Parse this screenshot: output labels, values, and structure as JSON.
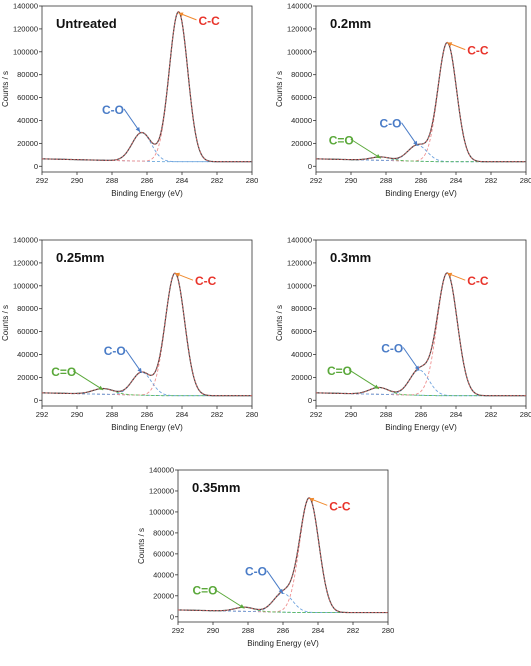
{
  "colors": {
    "cc": "#e8332a",
    "co": "#4a7cc7",
    "ceo": "#5aa83a",
    "arrow_cc": "#f08a2e",
    "envelope": "#444444",
    "fit": "#e06a6a",
    "component_cc": "#ef8f8f",
    "component_co": "#6fa3de",
    "component_ceo": "#5dbb5d",
    "baseline": "#6aa8dc"
  },
  "chart_data": [
    {
      "type": "line",
      "panel_label": "Untreated",
      "xlabel": "Binding Energy (eV)",
      "ylabel": "Counts / s",
      "xlim": [
        292,
        280
      ],
      "ylim": [
        -5000,
        140000
      ],
      "x_ticks": [
        "292",
        "290",
        "288",
        "286",
        "284",
        "282",
        "280"
      ],
      "y_ticks": [
        "0",
        "20000",
        "40000",
        "60000",
        "80000",
        "100000",
        "120000",
        "140000"
      ],
      "grid": false,
      "baseline": 4000,
      "peaks": [
        {
          "name": "C-C",
          "center": 284.2,
          "height": 131000,
          "fwhm": 1.25
        },
        {
          "name": "C-O",
          "center": 286.3,
          "height": 25000,
          "fwhm": 1.3
        }
      ],
      "annotations": [
        {
          "text": "C-C",
          "x": 284.2,
          "y": 134000
        },
        {
          "text": "C-O",
          "x": 286.4,
          "y": 30000
        }
      ]
    },
    {
      "type": "line",
      "panel_label": "0.2mm",
      "xlabel": "Binding Energy (eV)",
      "ylabel": "Counts / s",
      "xlim": [
        292,
        280
      ],
      "ylim": [
        -5000,
        140000
      ],
      "x_ticks": [
        "292",
        "290",
        "288",
        "286",
        "284",
        "282",
        "280"
      ],
      "y_ticks": [
        "0",
        "20000",
        "40000",
        "60000",
        "80000",
        "100000",
        "120000",
        "140000"
      ],
      "grid": false,
      "baseline": 4000,
      "peaks": [
        {
          "name": "C-C",
          "center": 284.5,
          "height": 104000,
          "fwhm": 1.25
        },
        {
          "name": "C-O",
          "center": 286.2,
          "height": 14000,
          "fwhm": 1.3
        },
        {
          "name": "C=O",
          "center": 288.3,
          "height": 3000,
          "fwhm": 1.3
        }
      ],
      "annotations": [
        {
          "text": "C-C",
          "x": 284.5,
          "y": 108000
        },
        {
          "text": "C-O",
          "x": 286.2,
          "y": 18000
        },
        {
          "text": "C=O",
          "x": 288.3,
          "y": 7000
        }
      ]
    },
    {
      "type": "line",
      "panel_label": "0.25mm",
      "xlabel": "Binding Energy (eV)",
      "ylabel": "Counts / s",
      "xlim": [
        292,
        280
      ],
      "ylim": [
        -5000,
        140000
      ],
      "x_ticks": [
        "292",
        "290",
        "288",
        "286",
        "284",
        "282",
        "280"
      ],
      "y_ticks": [
        "0",
        "20000",
        "40000",
        "60000",
        "80000",
        "100000",
        "120000",
        "140000"
      ],
      "grid": false,
      "baseline": 4000,
      "peaks": [
        {
          "name": "C-C",
          "center": 284.4,
          "height": 107000,
          "fwhm": 1.3
        },
        {
          "name": "C-O",
          "center": 286.3,
          "height": 20000,
          "fwhm": 1.3
        },
        {
          "name": "C=O",
          "center": 288.5,
          "height": 5000,
          "fwhm": 1.4
        }
      ],
      "annotations": [
        {
          "text": "C-C",
          "x": 284.4,
          "y": 111000
        },
        {
          "text": "C-O",
          "x": 286.3,
          "y": 24000
        },
        {
          "text": "C=O",
          "x": 288.5,
          "y": 9000
        }
      ]
    },
    {
      "type": "line",
      "panel_label": "0.3mm",
      "xlabel": "Binding Energy (eV)",
      "ylabel": "Counts / s",
      "xlim": [
        292,
        280
      ],
      "ylim": [
        -5000,
        140000
      ],
      "x_ticks": [
        "292",
        "290",
        "288",
        "286",
        "284",
        "282",
        "280"
      ],
      "y_ticks": [
        "0",
        "20000",
        "40000",
        "60000",
        "80000",
        "100000",
        "120000",
        "140000"
      ],
      "grid": false,
      "baseline": 4000,
      "peaks": [
        {
          "name": "C-C",
          "center": 284.5,
          "height": 107000,
          "fwhm": 1.35
        },
        {
          "name": "C-O",
          "center": 286.1,
          "height": 22000,
          "fwhm": 1.3
        },
        {
          "name": "C=O",
          "center": 288.4,
          "height": 6000,
          "fwhm": 1.3
        }
      ],
      "annotations": [
        {
          "text": "C-C",
          "x": 284.5,
          "y": 111000
        },
        {
          "text": "C-O",
          "x": 286.1,
          "y": 26000
        },
        {
          "text": "C=O",
          "x": 288.4,
          "y": 10000
        }
      ]
    },
    {
      "type": "line",
      "panel_label": "0.35mm",
      "xlabel": "Binding Energy (eV)",
      "ylabel": "Counts / s",
      "xlim": [
        292,
        280
      ],
      "ylim": [
        -5000,
        140000
      ],
      "x_ticks": [
        "292",
        "290",
        "288",
        "286",
        "284",
        "282",
        "280"
      ],
      "y_ticks": [
        "0",
        "20000",
        "40000",
        "60000",
        "80000",
        "100000",
        "120000",
        "140000"
      ],
      "grid": false,
      "baseline": 4000,
      "peaks": [
        {
          "name": "C-C",
          "center": 284.5,
          "height": 109000,
          "fwhm": 1.3
        },
        {
          "name": "C-O",
          "center": 286.0,
          "height": 18000,
          "fwhm": 1.3
        },
        {
          "name": "C=O",
          "center": 288.2,
          "height": 4000,
          "fwhm": 1.3
        }
      ],
      "annotations": [
        {
          "text": "C-C",
          "x": 284.5,
          "y": 113000
        },
        {
          "text": "C-O",
          "x": 286.0,
          "y": 22000
        },
        {
          "text": "C=O",
          "x": 288.2,
          "y": 8000
        }
      ]
    }
  ]
}
